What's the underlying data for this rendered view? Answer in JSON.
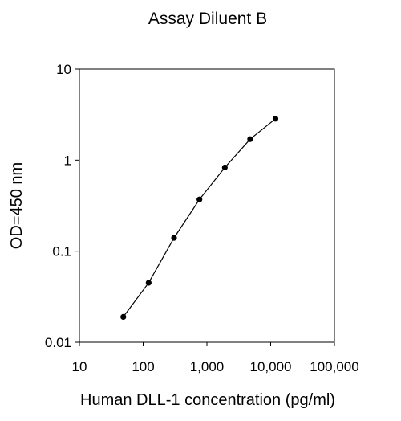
{
  "chart_data": {
    "type": "scatter",
    "title": "Assay Diluent B",
    "xlabel": "Human DLL-1 concentration (pg/ml)",
    "ylabel": "OD=450 nm",
    "x_scale": "log",
    "y_scale": "log",
    "xlim": [
      10,
      100000
    ],
    "ylim": [
      0.01,
      10
    ],
    "x_ticks": [
      10,
      100,
      1000,
      10000,
      100000
    ],
    "x_tick_labels": [
      "10",
      "100",
      "1,000",
      "10,000",
      "100,000"
    ],
    "y_ticks": [
      0.01,
      0.1,
      1,
      10
    ],
    "y_tick_labels": [
      "0.01",
      "0.1",
      "1",
      "10"
    ],
    "grid": false,
    "legend": "none",
    "series": [
      {
        "x": [
          48.8,
          122,
          305,
          763,
          1910,
          4770,
          11900
        ],
        "y": [
          0.019,
          0.045,
          0.14,
          0.37,
          0.83,
          1.7,
          2.85
        ],
        "color": "#000000",
        "marker": "circle",
        "line": true
      }
    ]
  }
}
